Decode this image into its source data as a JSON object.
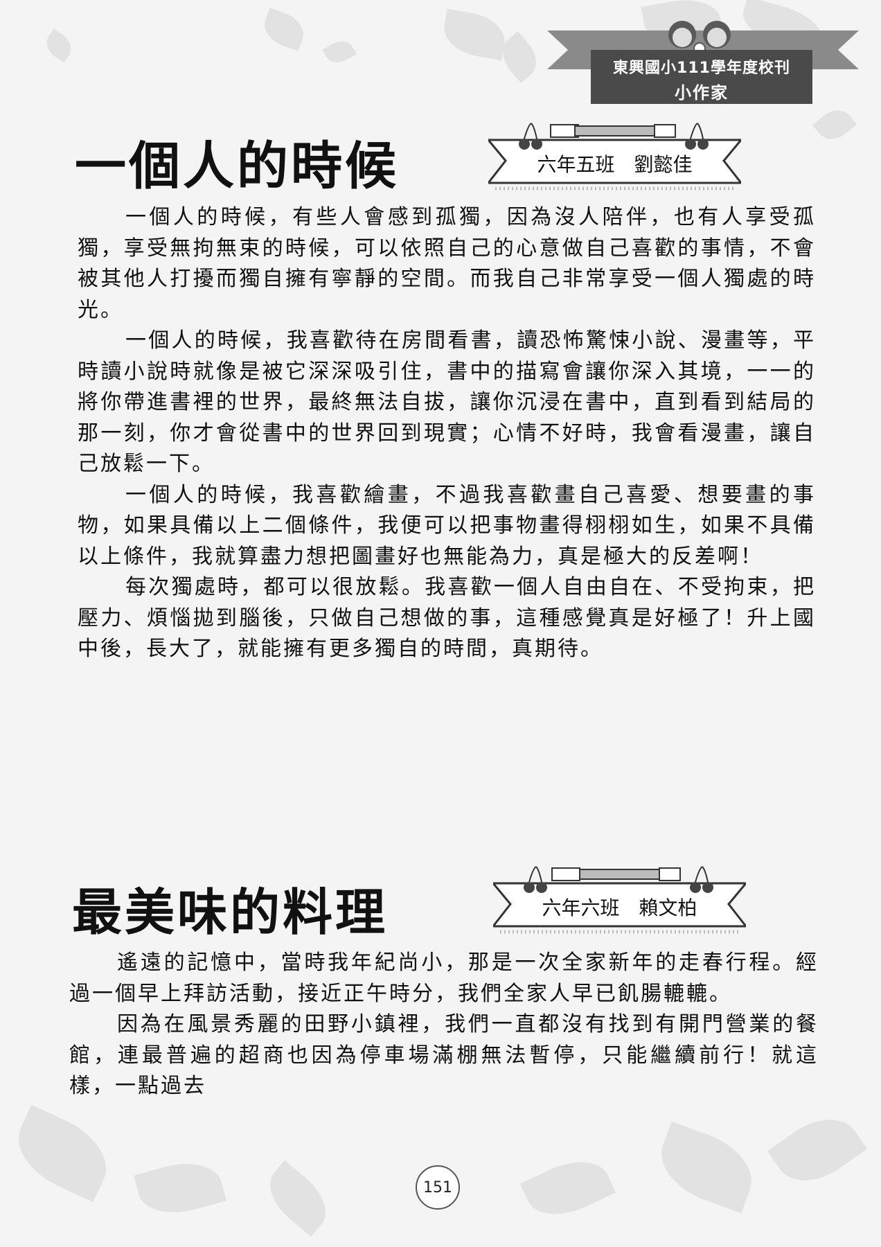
{
  "header": {
    "school_name": "東興國小111學年度校刊",
    "column_name": "小作家"
  },
  "articles": [
    {
      "title": "一個人的時候",
      "author": "六年五班　劉懿佳",
      "paragraphs": [
        "一個人的時候，有些人會感到孤獨，因為沒人陪伴，也有人享受孤獨，享受無拘無束的時候，可以依照自己的心意做自己喜歡的事情，不會被其他人打擾而獨自擁有寧靜的空間。而我自己非常享受一個人獨處的時光。",
        "一個人的時候，我喜歡待在房間看書，讀恐怖驚悚小說、漫畫等，平時讀小說時就像是被它深深吸引住，書中的描寫會讓你深入其境，一一的將你帶進書裡的世界，最終無法自拔，讓你沉浸在書中，直到看到結局的那一刻，你才會從書中的世界回到現實；心情不好時，我會看漫畫，讓自己放鬆一下。",
        "一個人的時候，我喜歡繪畫，不過我喜歡畫自己喜愛、想要畫的事物，如果具備以上二個條件，我便可以把事物畫得栩栩如生，如果不具備以上條件，我就算盡力想把圖畫好也無能為力，真是極大的反差啊！",
        "每次獨處時，都可以很放鬆。我喜歡一個人自由自在、不受拘束，把壓力、煩惱拋到腦後，只做自己想做的事，這種感覺真是好極了！升上國中後，長大了，就能擁有更多獨自的時間，真期待。"
      ]
    },
    {
      "title": "最美味的料理",
      "author": "六年六班　賴文柏",
      "paragraphs": [
        "遙遠的記憶中，當時我年紀尚小，那是一次全家新年的走春行程。經過一個早上拜訪活動，接近正午時分，我們全家人早已飢腸轆轆。",
        "因為在風景秀麗的田野小鎮裡，我們一直都沒有找到有開門營業的餐館，連最普遍的超商也因為停車場滿棚無法暫停，只能繼續前行！就這樣，一點過去"
      ]
    }
  ],
  "page_number": "151"
}
